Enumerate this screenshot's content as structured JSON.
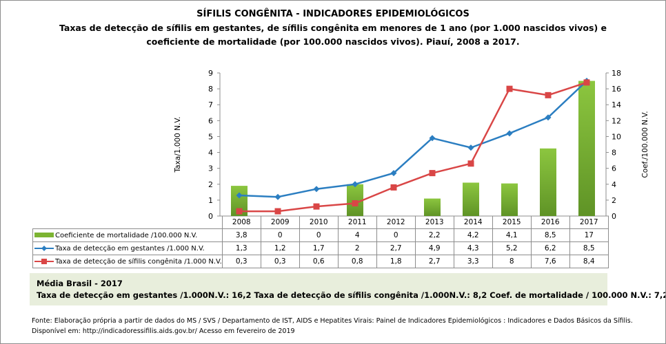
{
  "header": {
    "title": "SÍFILIS CONGÊNITA - INDICADORES EPIDEMIOLÓGICOS",
    "subtitle_line1": "Taxas de detecção de sífilis em gestantes, de sífilis congênita em menores de 1 ano (por 1.000 nascidos vivos) e",
    "subtitle_line2": "coeficiente de mortalidade (por 100.000 nascidos vivos). Piauí, 2008 a 2017."
  },
  "chart_data": {
    "type": "bar+line",
    "categories": [
      "2008",
      "2009",
      "2010",
      "2011",
      "2012",
      "2013",
      "2014",
      "2015",
      "2016",
      "2017"
    ],
    "ylabel": "Taxa/1.000 N.V.",
    "y2label": "Coef./100.000 N.V.",
    "ylim": [
      0,
      9
    ],
    "y2lim": [
      0,
      18
    ],
    "yticks": [
      "0",
      "1",
      "2",
      "3",
      "4",
      "5",
      "6",
      "7",
      "8",
      "9"
    ],
    "y2ticks": [
      "0",
      "2",
      "4",
      "6",
      "8",
      "10",
      "12",
      "14",
      "16",
      "18"
    ],
    "grid": false,
    "series": [
      {
        "name": "Coeficiente de mortalidade /100.000 N.V.",
        "type": "bar",
        "axis": "right",
        "color": "#7cb432",
        "values": [
          3.8,
          0,
          0,
          4,
          0,
          2.2,
          4.2,
          4.1,
          8.5,
          17
        ],
        "labels": [
          "3,8",
          "0",
          "0",
          "4",
          "0",
          "2,2",
          "4,2",
          "4,1",
          "8,5",
          "17"
        ]
      },
      {
        "name": "Taxa de detecção em gestantes /1.000 N.V.",
        "type": "line",
        "axis": "left",
        "color": "#2b7ec1",
        "marker": "diamond",
        "values": [
          1.3,
          1.2,
          1.7,
          2,
          2.7,
          4.9,
          4.3,
          5.2,
          6.2,
          8.5
        ],
        "labels": [
          "1,3",
          "1,2",
          "1,7",
          "2",
          "2,7",
          "4,9",
          "4,3",
          "5,2",
          "6,2",
          "8,5"
        ]
      },
      {
        "name": "Taxa de detecção de sífilis congênita /1.000 N.V.",
        "type": "line",
        "axis": "left",
        "color": "#d94646",
        "marker": "square",
        "values": [
          0.3,
          0.3,
          0.6,
          0.8,
          1.8,
          2.7,
          3.3,
          8,
          7.6,
          8.4
        ],
        "labels": [
          "0,3",
          "0,3",
          "0,6",
          "0,8",
          "1,8",
          "2,7",
          "3,3",
          "8",
          "7,6",
          "8,4"
        ]
      }
    ]
  },
  "brasil": {
    "title": "Média Brasil  - 2017",
    "line": "Taxa  de detecção  em gestantes  /1.000N.V.: 16,2    Taxa  de detecção  de sífilis  congênita  /1.000N.V.: 8,2    Coef.  de  mortalidade  / 100.000 N.V.: 7,2"
  },
  "footer": {
    "source": "Fonte: Elaboração própria a partir de dados do MS / SVS / Departamento de IST, AIDS e Hepatites Virais:  Painel de Indicadores Epidemiológicos : Indicadores e Dados Básicos da Sífilis.",
    "available": "Disponível em: http://indicadoressifilis.aids.gov.br/    Acesso em fevereiro de 2019"
  }
}
